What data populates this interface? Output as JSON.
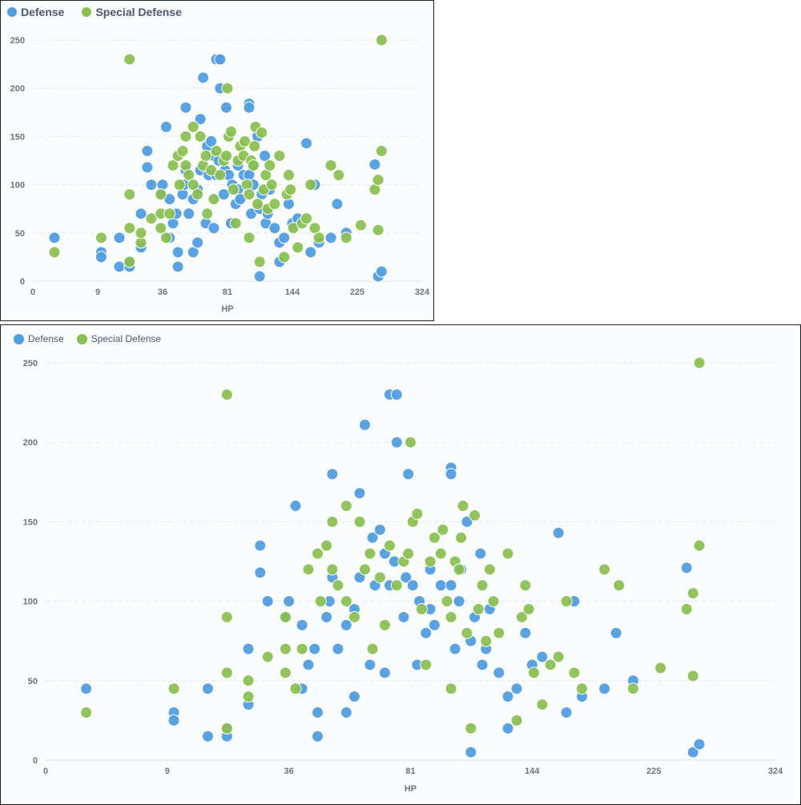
{
  "legend": [
    {
      "label": "Defense",
      "color": "#509ee3"
    },
    {
      "label": "Special Defense",
      "color": "#88bf4d"
    }
  ],
  "chart_data": [
    {
      "type": "scatter",
      "xlabel": "HP",
      "x_scale": "sqrt",
      "xlim": [
        0,
        324
      ],
      "ylim": [
        0,
        250
      ],
      "x_ticks": [
        0,
        9,
        36,
        81,
        144,
        225,
        324
      ],
      "y_ticks": [
        0,
        50,
        100,
        150,
        200,
        250
      ],
      "grid": true,
      "legend_position": "top-left",
      "series": [
        {
          "name": "Defense",
          "color": "#509ee3",
          "points": [
            [
              1,
              45
            ],
            [
              10,
              30
            ],
            [
              10,
              25
            ],
            [
              16,
              45
            ],
            [
              16,
              15
            ],
            [
              20,
              15
            ],
            [
              20,
              20
            ],
            [
              25,
              35
            ],
            [
              25,
              70
            ],
            [
              28,
              118
            ],
            [
              28,
              135
            ],
            [
              30,
              100
            ],
            [
              35,
              90
            ],
            [
              36,
              100
            ],
            [
              38,
              160
            ],
            [
              40,
              85
            ],
            [
              40,
              45
            ],
            [
              42,
              60
            ],
            [
              44,
              70
            ],
            [
              45,
              30
            ],
            [
              45,
              15
            ],
            [
              48,
              90
            ],
            [
              49,
              100
            ],
            [
              50,
              180
            ],
            [
              50,
              115
            ],
            [
              52,
              70
            ],
            [
              55,
              85
            ],
            [
              55,
              30
            ],
            [
              58,
              40
            ],
            [
              58,
              95
            ],
            [
              60,
              115
            ],
            [
              60,
              168
            ],
            [
              62,
              211
            ],
            [
              64,
              60
            ],
            [
              65,
              140
            ],
            [
              66,
              110
            ],
            [
              68,
              145
            ],
            [
              70,
              55
            ],
            [
              70,
              130
            ],
            [
              72,
              110
            ],
            [
              72,
              230
            ],
            [
              74,
              125
            ],
            [
              75,
              200
            ],
            [
              75,
              230
            ],
            [
              78,
              90
            ],
            [
              79,
              115
            ],
            [
              80,
              180
            ],
            [
              82,
              110
            ],
            [
              84,
              60
            ],
            [
              85,
              100
            ],
            [
              88,
              80
            ],
            [
              90,
              95
            ],
            [
              90,
              120
            ],
            [
              92,
              85
            ],
            [
              95,
              110
            ],
            [
              100,
              184
            ],
            [
              100,
              180
            ],
            [
              100,
              110
            ],
            [
              102,
              70
            ],
            [
              104,
              100
            ],
            [
              105,
              120
            ],
            [
              108,
              150
            ],
            [
              110,
              75
            ],
            [
              112,
              90
            ],
            [
              115,
              130
            ],
            [
              116,
              60
            ],
            [
              118,
              70
            ],
            [
              120,
              95
            ],
            [
              125,
              55
            ],
            [
              130,
              20
            ],
            [
              130,
              40
            ],
            [
              135,
              45
            ],
            [
              140,
              80
            ],
            [
              144,
              60
            ],
            [
              150,
              65
            ],
            [
              160,
              143
            ],
            [
              165,
              30
            ],
            [
              170,
              100
            ],
            [
              175,
              40
            ],
            [
              190,
              45
            ],
            [
              198,
              80
            ],
            [
              210,
              50
            ],
            [
              250,
              121
            ],
            [
              255,
              5
            ],
            [
              260,
              10
            ],
            [
              110,
              5
            ]
          ]
        },
        {
          "name": "Special Defense",
          "color": "#88bf4d",
          "points": [
            [
              1,
              30
            ],
            [
              10,
              45
            ],
            [
              20,
              230
            ],
            [
              20,
              90
            ],
            [
              20,
              55
            ],
            [
              20,
              20
            ],
            [
              25,
              40
            ],
            [
              25,
              50
            ],
            [
              30,
              65
            ],
            [
              35,
              90
            ],
            [
              35,
              70
            ],
            [
              35,
              55
            ],
            [
              38,
              45
            ],
            [
              40,
              70
            ],
            [
              42,
              120
            ],
            [
              45,
              130
            ],
            [
              46,
              100
            ],
            [
              48,
              135
            ],
            [
              50,
              150
            ],
            [
              50,
              120
            ],
            [
              52,
              110
            ],
            [
              55,
              160
            ],
            [
              55,
              100
            ],
            [
              58,
              90
            ],
            [
              60,
              150
            ],
            [
              62,
              120
            ],
            [
              64,
              130
            ],
            [
              65,
              70
            ],
            [
              68,
              115
            ],
            [
              70,
              85
            ],
            [
              72,
              135
            ],
            [
              75,
              110
            ],
            [
              78,
              125
            ],
            [
              80,
              130
            ],
            [
              81,
              200
            ],
            [
              82,
              150
            ],
            [
              84,
              155
            ],
            [
              86,
              95
            ],
            [
              88,
              60
            ],
            [
              90,
              125
            ],
            [
              92,
              140
            ],
            [
              95,
              130
            ],
            [
              96,
              145
            ],
            [
              98,
              100
            ],
            [
              100,
              90
            ],
            [
              102,
              125
            ],
            [
              104,
              120
            ],
            [
              105,
              140
            ],
            [
              106,
              160
            ],
            [
              108,
              80
            ],
            [
              110,
              20
            ],
            [
              112,
              154
            ],
            [
              114,
              95
            ],
            [
              116,
              110
            ],
            [
              118,
              75
            ],
            [
              120,
              120
            ],
            [
              122,
              100
            ],
            [
              125,
              80
            ],
            [
              130,
              130
            ],
            [
              135,
              25
            ],
            [
              138,
              90
            ],
            [
              140,
              110
            ],
            [
              142,
              95
            ],
            [
              145,
              55
            ],
            [
              150,
              35
            ],
            [
              155,
              60
            ],
            [
              160,
              65
            ],
            [
              165,
              100
            ],
            [
              170,
              55
            ],
            [
              175,
              45
            ],
            [
              190,
              120
            ],
            [
              200,
              110
            ],
            [
              210,
              45
            ],
            [
              230,
              58
            ],
            [
              250,
              95
            ],
            [
              255,
              53
            ],
            [
              255,
              105
            ],
            [
              260,
              135
            ],
            [
              260,
              250
            ],
            [
              100,
              45
            ]
          ]
        }
      ]
    }
  ]
}
